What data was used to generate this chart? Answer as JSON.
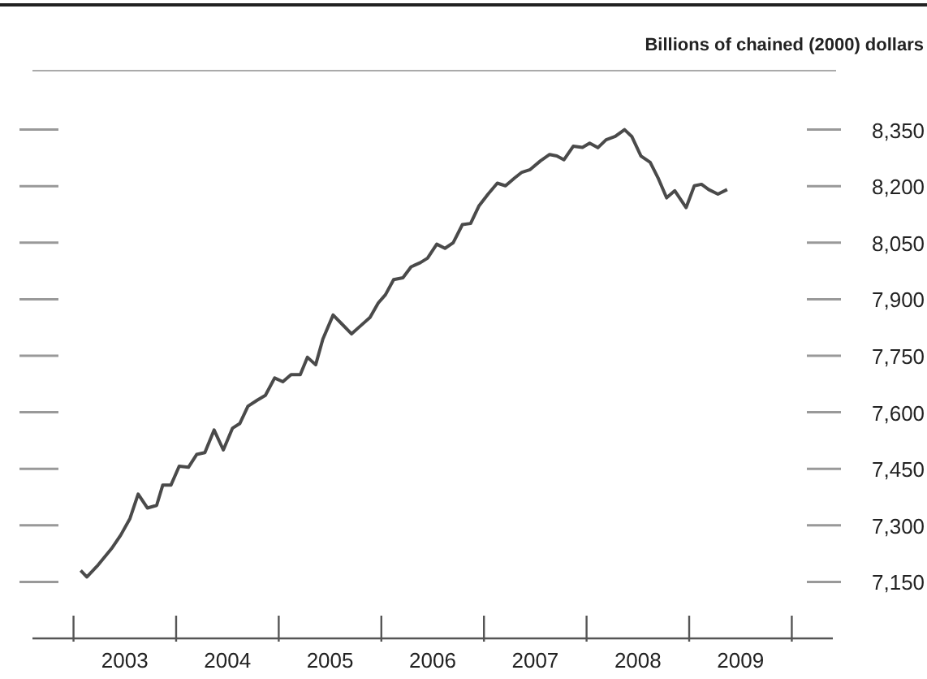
{
  "chart_data": {
    "type": "line",
    "ylabel": "Billions of chained (2000) dollars",
    "series": [
      {
        "color": "#4a4a4a",
        "x": [
          2003.07,
          2003.13,
          2003.24,
          2003.37,
          2003.46,
          2003.55,
          2003.63,
          2003.72,
          2003.81,
          2003.87,
          2003.95,
          2004.03,
          2004.12,
          2004.2,
          2004.28,
          2004.37,
          2004.46,
          2004.55,
          2004.62,
          2004.7,
          2004.79,
          2004.87,
          2004.96,
          2005.04,
          2005.12,
          2005.21,
          2005.28,
          2005.36,
          2005.43,
          2005.53,
          2005.62,
          2005.71,
          2005.8,
          2005.89,
          2005.97,
          2006.04,
          2006.12,
          2006.21,
          2006.29,
          2006.38,
          2006.45,
          2006.54,
          2006.62,
          2006.7,
          2006.79,
          2006.87,
          2006.95,
          2007.04,
          2007.13,
          2007.21,
          2007.3,
          2007.37,
          2007.45,
          2007.55,
          2007.64,
          2007.71,
          2007.78,
          2007.87,
          2007.96,
          2008.03,
          2008.11,
          2008.19,
          2008.28,
          2008.37,
          2008.44,
          2008.53,
          2008.62,
          2008.7,
          2008.78,
          2008.86,
          2008.97,
          2009.05,
          2009.12,
          2009.19,
          2009.28,
          2009.37
        ],
        "values": [
          7180,
          7163,
          7195,
          7238,
          7274,
          7318,
          7383,
          7346,
          7353,
          7407,
          7407,
          7457,
          7454,
          7488,
          7493,
          7553,
          7500,
          7558,
          7570,
          7616,
          7632,
          7645,
          7691,
          7681,
          7700,
          7700,
          7746,
          7726,
          7794,
          7858,
          7833,
          7808,
          7830,
          7852,
          7890,
          7912,
          7952,
          7957,
          7986,
          7997,
          8009,
          8046,
          8035,
          8050,
          8098,
          8101,
          8147,
          8179,
          8208,
          8201,
          8222,
          8237,
          8244,
          8267,
          8284,
          8280,
          8270,
          8306,
          8303,
          8314,
          8302,
          8323,
          8332,
          8350,
          8332,
          8280,
          8263,
          8220,
          8169,
          8188,
          8143,
          8201,
          8205,
          8191,
          8179,
          8191
        ]
      }
    ],
    "xlim": [
      2002.6,
      2010.4
    ],
    "xticks": [
      {
        "value": 2003,
        "label": null
      },
      {
        "value": 2003.5,
        "label": "2003"
      },
      {
        "value": 2004,
        "label": null
      },
      {
        "value": 2004.5,
        "label": "2004"
      },
      {
        "value": 2005,
        "label": null
      },
      {
        "value": 2005.5,
        "label": "2005"
      },
      {
        "value": 2006,
        "label": null
      },
      {
        "value": 2006.5,
        "label": "2006"
      },
      {
        "value": 2007,
        "label": null
      },
      {
        "value": 2007.5,
        "label": "2007"
      },
      {
        "value": 2008,
        "label": null
      },
      {
        "value": 2008.5,
        "label": "2008"
      },
      {
        "value": 2009,
        "label": null
      },
      {
        "value": 2009.5,
        "label": "2009"
      },
      {
        "value": 2010,
        "label": null
      }
    ],
    "ylim": [
      7000,
      8500
    ],
    "yticks": [
      {
        "value": 7150,
        "label": "7,150"
      },
      {
        "value": 7300,
        "label": "7,300"
      },
      {
        "value": 7450,
        "label": "7,450"
      },
      {
        "value": 7600,
        "label": "7,600"
      },
      {
        "value": 7750,
        "label": "7,750"
      },
      {
        "value": 7900,
        "label": "7,900"
      },
      {
        "value": 8050,
        "label": "8,050"
      },
      {
        "value": 8200,
        "label": "8,200"
      },
      {
        "value": 8350,
        "label": "8,350"
      }
    ],
    "grid": false,
    "legend": false,
    "marker": "none",
    "line_style": "solid"
  }
}
